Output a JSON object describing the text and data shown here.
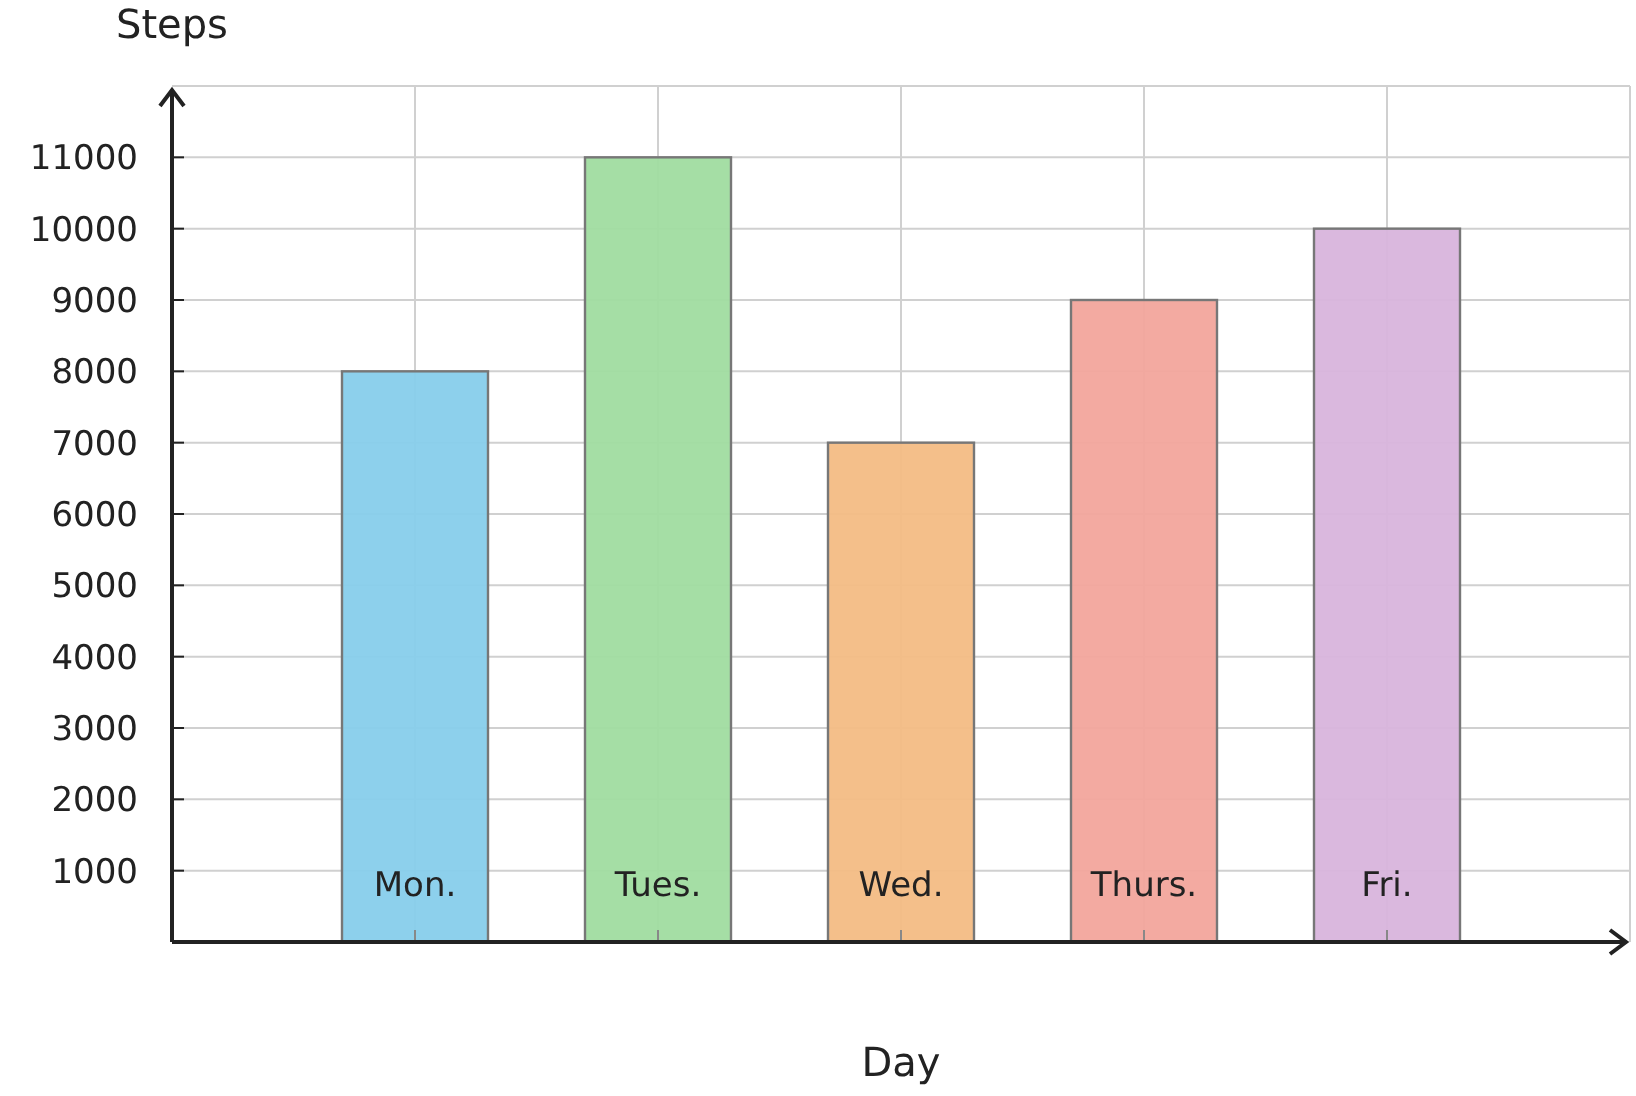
{
  "chart_data": {
    "type": "bar",
    "xlabel": "Day",
    "ylabel": "Steps",
    "categories": [
      "Mon.",
      "Tues.",
      "Wed.",
      "Thurs.",
      "Fri."
    ],
    "values": [
      8000,
      11000,
      7000,
      9000,
      10000
    ],
    "colors": [
      "#87ceeb",
      "#a0dca0",
      "#f3bc84",
      "#f2a59c",
      "#d8b4dc"
    ],
    "ylim": [
      0,
      12000
    ],
    "yticks": [
      1000,
      2000,
      3000,
      4000,
      5000,
      6000,
      7000,
      8000,
      9000,
      10000,
      11000
    ],
    "grid": true
  }
}
